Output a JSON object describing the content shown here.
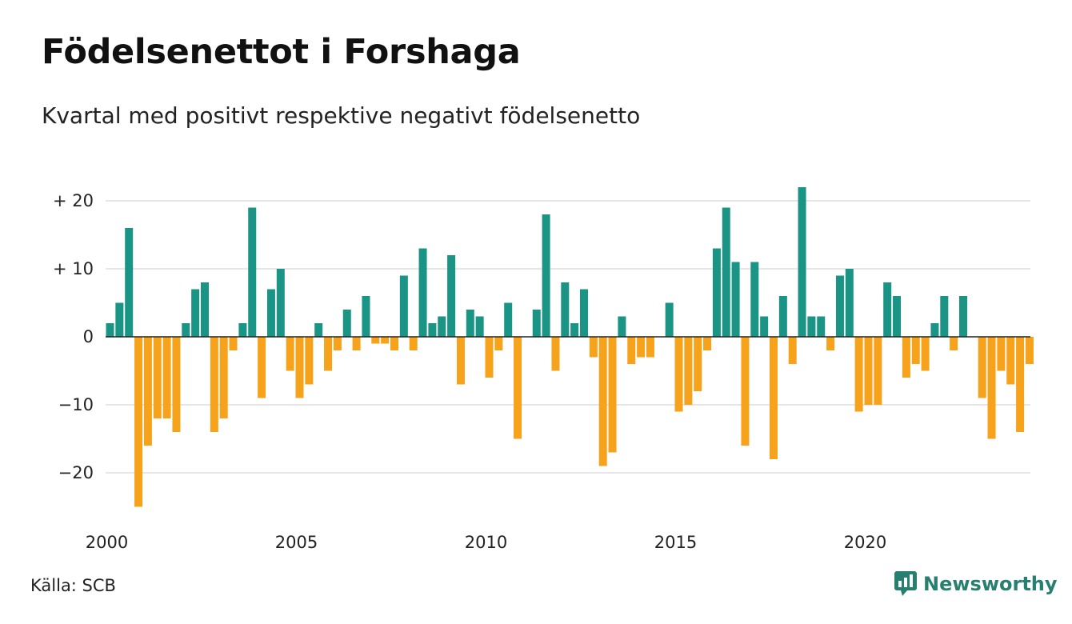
{
  "title": "Födelsenettot i Forshaga",
  "subtitle": "Kvartal med positivt respektive negativt födelsenetto",
  "source": "Källa: SCB",
  "brand": "Newsworthy",
  "colors": {
    "positive": "#1a9484",
    "negative": "#f7a21b",
    "grid": "#dddddd",
    "baseline": "#222222",
    "brand": "#27806f"
  },
  "chart_data": {
    "type": "bar",
    "title": "Födelsenettot i Forshaga",
    "subtitle": "Kvartal med positivt respektive negativt födelsenetto",
    "x_start": 2000,
    "x_step": 0.25,
    "values": [
      2,
      5,
      16,
      -25,
      -16,
      -12,
      -12,
      -14,
      2,
      7,
      8,
      -14,
      -12,
      -2,
      2,
      19,
      -9,
      7,
      10,
      -5,
      -9,
      -7,
      2,
      -5,
      -2,
      4,
      -2,
      6,
      -1,
      -1,
      -2,
      9,
      -2,
      13,
      2,
      3,
      12,
      -7,
      4,
      3,
      -6,
      -2,
      5,
      -15,
      0,
      4,
      18,
      -5,
      8,
      2,
      7,
      -3,
      -19,
      -17,
      3,
      -4,
      -3,
      -3,
      0,
      5,
      -11,
      -10,
      -8,
      -2,
      13,
      19,
      11,
      -16,
      11,
      3,
      -18,
      6,
      -4,
      22,
      3,
      3,
      -2,
      9,
      10,
      -11,
      -10,
      -10,
      8,
      6,
      -6,
      -4,
      -5,
      2,
      6,
      -2,
      6,
      0,
      -9,
      -15,
      -5,
      -7,
      -14,
      -4
    ],
    "ylim": [
      -26,
      22
    ],
    "y_ticks": [
      20,
      10,
      0,
      -10,
      -20
    ],
    "y_tick_labels": [
      "+ 20",
      "+ 10",
      "0",
      "−10",
      "−20"
    ],
    "x_ticks": [
      2000,
      2005,
      2010,
      2015,
      2020
    ],
    "x_tick_labels": [
      "2000",
      "2005",
      "2010",
      "2015",
      "2020"
    ],
    "xlabel": "",
    "ylabel": "",
    "grid": true,
    "legend": "none"
  }
}
